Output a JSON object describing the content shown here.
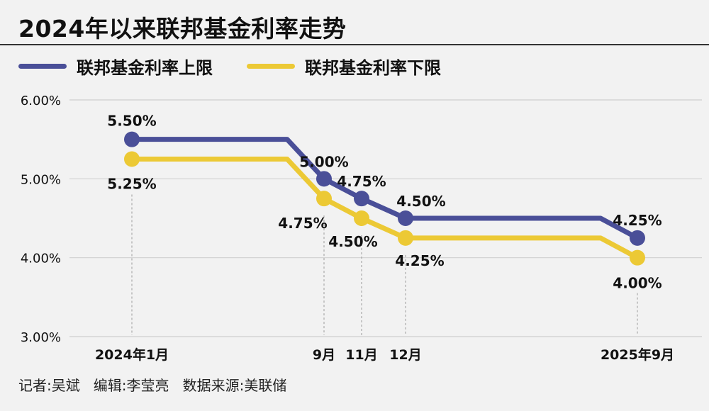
{
  "header": {
    "title": "2024年以来联邦基金利率走势"
  },
  "colors": {
    "upper": "#4a4f98",
    "lower": "#ecc935",
    "grid": "#cfcfcf",
    "text": "#111111"
  },
  "chart_data": {
    "type": "line",
    "title": "2024年以来联邦基金利率走势",
    "xlabel": "",
    "ylabel": "",
    "ylim": [
      3.0,
      6.0
    ],
    "y_ticks": [
      "3.00%",
      "4.00%",
      "5.00%",
      "6.00%"
    ],
    "y_tick_values": [
      3.0,
      4.0,
      5.0,
      6.0
    ],
    "grid": true,
    "legend_position": "top-left",
    "x_labels": [
      "2024年1月",
      "9月",
      "11月",
      "12月",
      "2025年9月"
    ],
    "series": [
      {
        "name": "联邦基金利率上限",
        "values": [
          5.5,
          5.0,
          4.75,
          4.5,
          4.25
        ],
        "labels": [
          "5.50%",
          "5.00%",
          "4.75%",
          "4.50%",
          "4.25%"
        ]
      },
      {
        "name": "联邦基金利率下限",
        "values": [
          5.25,
          4.75,
          4.5,
          4.25,
          4.0
        ],
        "labels": [
          "5.25%",
          "4.75%",
          "4.50%",
          "4.25%",
          "4.00%"
        ]
      }
    ]
  },
  "footer": {
    "credit": "记者:吴斌   编辑:李莹亮   数据来源:美联储"
  }
}
